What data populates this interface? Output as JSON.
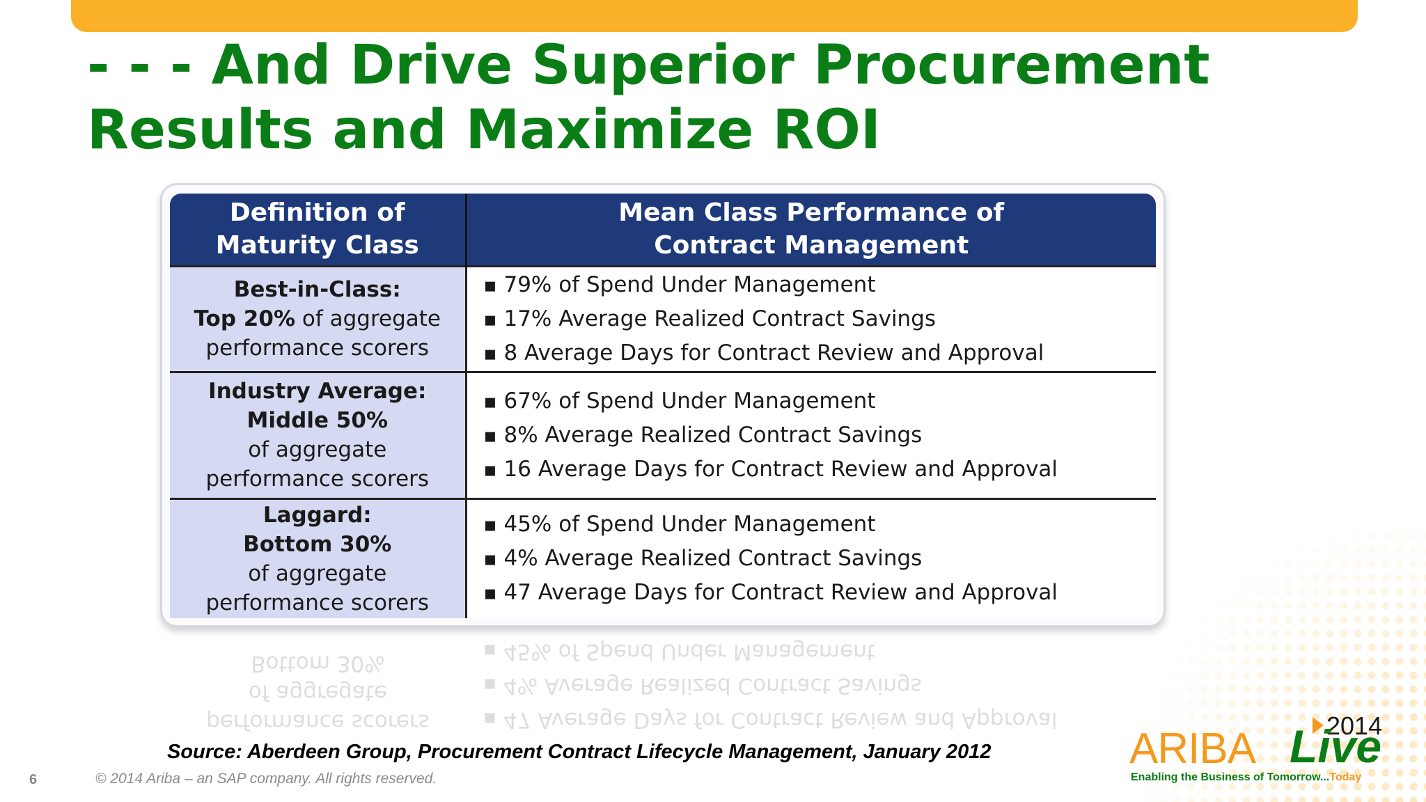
{
  "title": {
    "line1": "- - - And Drive Superior Procurement",
    "line2": "Results and Maximize ROI"
  },
  "table": {
    "headers": {
      "definition_line1": "Definition of",
      "definition_line2": "Maturity Class",
      "performance_line1": "Mean Class Performance of",
      "performance_line2": "Contract Management"
    },
    "rows": [
      {
        "def_line1": "Best-in-Class:",
        "def_line2_bold": "Top 20%",
        "def_line2_rest": " of aggregate",
        "def_line3": "performance scorers",
        "items": [
          "79% of Spend Under Management",
          "17% Average Realized Contract Savings",
          "8 Average Days for Contract Review and Approval"
        ]
      },
      {
        "def_line1": "Industry Average:",
        "def_line2": "Middle 50%",
        "def_line3": "of aggregate",
        "def_line4": "performance scorers",
        "items": [
          "67% of Spend Under Management",
          "8% Average Realized Contract Savings",
          "16 Average Days for Contract Review and Approval"
        ]
      },
      {
        "def_line1": "Laggard:",
        "def_line2": "Bottom 30%",
        "def_line3": "of aggregate",
        "def_line4": "performance scorers",
        "items": [
          "45% of Spend Under Management",
          "4% Average Realized Contract Savings",
          "47 Average Days for Contract Review and Approval"
        ]
      }
    ]
  },
  "source": "Source: Aberdeen Group,  Procurement Contract Lifecycle Management, January 2012",
  "footer": {
    "page_number": "6",
    "copyright": "© 2014 Ariba – an SAP company. All rights reserved."
  },
  "logo": {
    "year": "2014",
    "ariba": "ARIBA",
    "live": "Live",
    "tagline_main": "Enabling the Business of Tomorrow...",
    "tagline_accent": "Today"
  },
  "colors": {
    "accent_orange": "#fbb02a",
    "title_green": "#0b7d16",
    "header_navy": "#1e3a7a",
    "definition_cell": "#d5daf2"
  }
}
